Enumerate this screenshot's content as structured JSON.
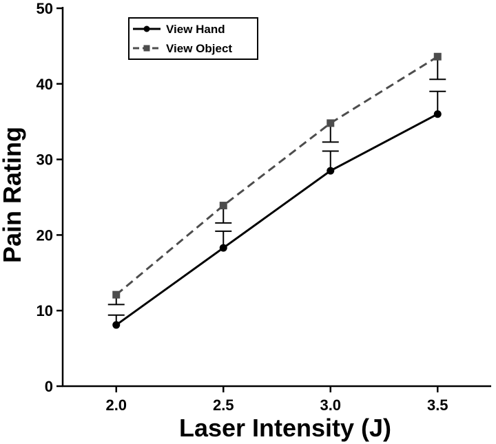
{
  "chart_data": {
    "type": "line",
    "xlabel": "Laser Intensity (J)",
    "ylabel": "Pain Rating",
    "x": [
      2.0,
      2.5,
      3.0,
      3.5
    ],
    "x_tick_labels": [
      "2.0",
      "2.5",
      "3.0",
      "3.5"
    ],
    "y_ticks": [
      0,
      10,
      20,
      30,
      40,
      50
    ],
    "y_tick_labels": [
      "0",
      "10",
      "20",
      "30",
      "40",
      "50"
    ],
    "xlim": [
      1.75,
      3.75
    ],
    "ylim": [
      0,
      50
    ],
    "grid": false,
    "legend_position": "top-left",
    "series": [
      {
        "name": "View Hand",
        "values": [
          8.1,
          18.3,
          28.5,
          36.0
        ],
        "error_upper": [
          9.4,
          20.5,
          31.1,
          39.0
        ],
        "marker": "circle",
        "line_style": "solid",
        "color": "#000000"
      },
      {
        "name": "View Object",
        "values": [
          12.1,
          23.9,
          34.8,
          43.6
        ],
        "error_lower": [
          10.8,
          21.6,
          32.3,
          40.6
        ],
        "marker": "square",
        "line_style": "dashed",
        "color": "#4d4d4d"
      }
    ]
  }
}
